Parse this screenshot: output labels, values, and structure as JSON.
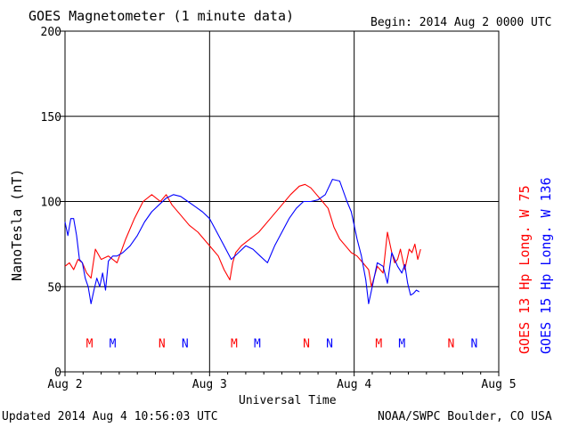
{
  "header": {
    "title": "GOES Magnetometer (1 minute data)",
    "begin": "Begin:  2014 Aug 2 0000 UTC"
  },
  "footer": {
    "updated": "Updated 2014 Aug  4 10:56:03 UTC",
    "credit": "NOAA/SWPC Boulder, CO USA"
  },
  "colors": {
    "goes13": "#ff0000",
    "goes15": "#0000ff",
    "grid": "#000000"
  },
  "chart_data": {
    "type": "line",
    "title": "GOES Magnetometer (1 minute data)",
    "xlabel": "Universal Time",
    "ylabel": "NanoTesla (nT)",
    "xlim": [
      0,
      3
    ],
    "ylim": [
      0,
      200
    ],
    "yticks": [
      0,
      50,
      100,
      150,
      200
    ],
    "xtick_labels": [
      "Aug 2",
      "Aug 3",
      "Aug 4",
      "Aug 5"
    ],
    "grid": true,
    "legend": "right side, vertical",
    "series": [
      {
        "name": "GOES 13 Hp  Long. W 75",
        "color": "#ff0000",
        "x": [
          0.0,
          0.03,
          0.06,
          0.09,
          0.12,
          0.15,
          0.18,
          0.21,
          0.25,
          0.3,
          0.36,
          0.42,
          0.48,
          0.54,
          0.6,
          0.66,
          0.7,
          0.74,
          0.8,
          0.86,
          0.92,
          0.98,
          1.02,
          1.06,
          1.1,
          1.14,
          1.16,
          1.18,
          1.22,
          1.28,
          1.34,
          1.42,
          1.5,
          1.56,
          1.62,
          1.66,
          1.7,
          1.74,
          1.78,
          1.82,
          1.86,
          1.9,
          1.94,
          1.98,
          2.02,
          2.06,
          2.1,
          2.12,
          2.16,
          2.2,
          2.23,
          2.26,
          2.28,
          2.3,
          2.32,
          2.35,
          2.38,
          2.4,
          2.42,
          2.44,
          2.46
        ],
        "y": [
          62,
          64,
          60,
          66,
          64,
          58,
          55,
          72,
          66,
          68,
          64,
          78,
          90,
          100,
          104,
          100,
          104,
          98,
          92,
          86,
          82,
          76,
          72,
          68,
          60,
          54,
          64,
          70,
          74,
          78,
          82,
          90,
          98,
          104,
          109,
          110,
          108,
          104,
          100,
          96,
          85,
          78,
          74,
          70,
          68,
          64,
          60,
          50,
          62,
          58,
          82,
          70,
          64,
          66,
          72,
          60,
          72,
          70,
          75,
          66,
          72
        ]
      },
      {
        "name": "GOES 15 Hp  Long. W 136",
        "color": "#0000ff",
        "x": [
          0.0,
          0.02,
          0.04,
          0.06,
          0.08,
          0.1,
          0.12,
          0.14,
          0.16,
          0.18,
          0.2,
          0.22,
          0.24,
          0.26,
          0.28,
          0.3,
          0.33,
          0.36,
          0.4,
          0.45,
          0.5,
          0.55,
          0.6,
          0.65,
          0.7,
          0.75,
          0.8,
          0.85,
          0.9,
          0.95,
          1.0,
          1.05,
          1.1,
          1.15,
          1.2,
          1.25,
          1.3,
          1.35,
          1.4,
          1.45,
          1.5,
          1.55,
          1.6,
          1.65,
          1.7,
          1.75,
          1.8,
          1.85,
          1.9,
          1.95,
          1.98,
          2.0,
          2.02,
          2.05,
          2.08,
          2.1,
          2.13,
          2.16,
          2.2,
          2.23,
          2.26,
          2.3,
          2.33,
          2.35,
          2.37,
          2.39,
          2.41,
          2.43,
          2.45
        ],
        "y": [
          88,
          80,
          90,
          90,
          80,
          66,
          64,
          55,
          50,
          40,
          48,
          55,
          50,
          58,
          48,
          65,
          68,
          68,
          70,
          74,
          80,
          88,
          94,
          98,
          102,
          104,
          103,
          100,
          97,
          94,
          90,
          82,
          74,
          66,
          70,
          74,
          72,
          68,
          64,
          74,
          82,
          90,
          96,
          100,
          100,
          101,
          104,
          113,
          112,
          100,
          94,
          86,
          78,
          68,
          54,
          40,
          52,
          64,
          62,
          52,
          70,
          62,
          58,
          63,
          52,
          45,
          46,
          48,
          47
        ]
      }
    ],
    "markers": [
      {
        "label": "M",
        "x": 0.17,
        "color": "#ff0000"
      },
      {
        "label": "M",
        "x": 0.33,
        "color": "#0000ff"
      },
      {
        "label": "N",
        "x": 0.67,
        "color": "#ff0000"
      },
      {
        "label": "N",
        "x": 0.83,
        "color": "#0000ff"
      },
      {
        "label": "M",
        "x": 1.17,
        "color": "#ff0000"
      },
      {
        "label": "M",
        "x": 1.33,
        "color": "#0000ff"
      },
      {
        "label": "N",
        "x": 1.67,
        "color": "#ff0000"
      },
      {
        "label": "N",
        "x": 1.83,
        "color": "#0000ff"
      },
      {
        "label": "M",
        "x": 2.17,
        "color": "#ff0000"
      },
      {
        "label": "M",
        "x": 2.33,
        "color": "#0000ff"
      },
      {
        "label": "N",
        "x": 2.67,
        "color": "#ff0000"
      },
      {
        "label": "N",
        "x": 2.83,
        "color": "#0000ff"
      }
    ],
    "marker_y": 17
  }
}
